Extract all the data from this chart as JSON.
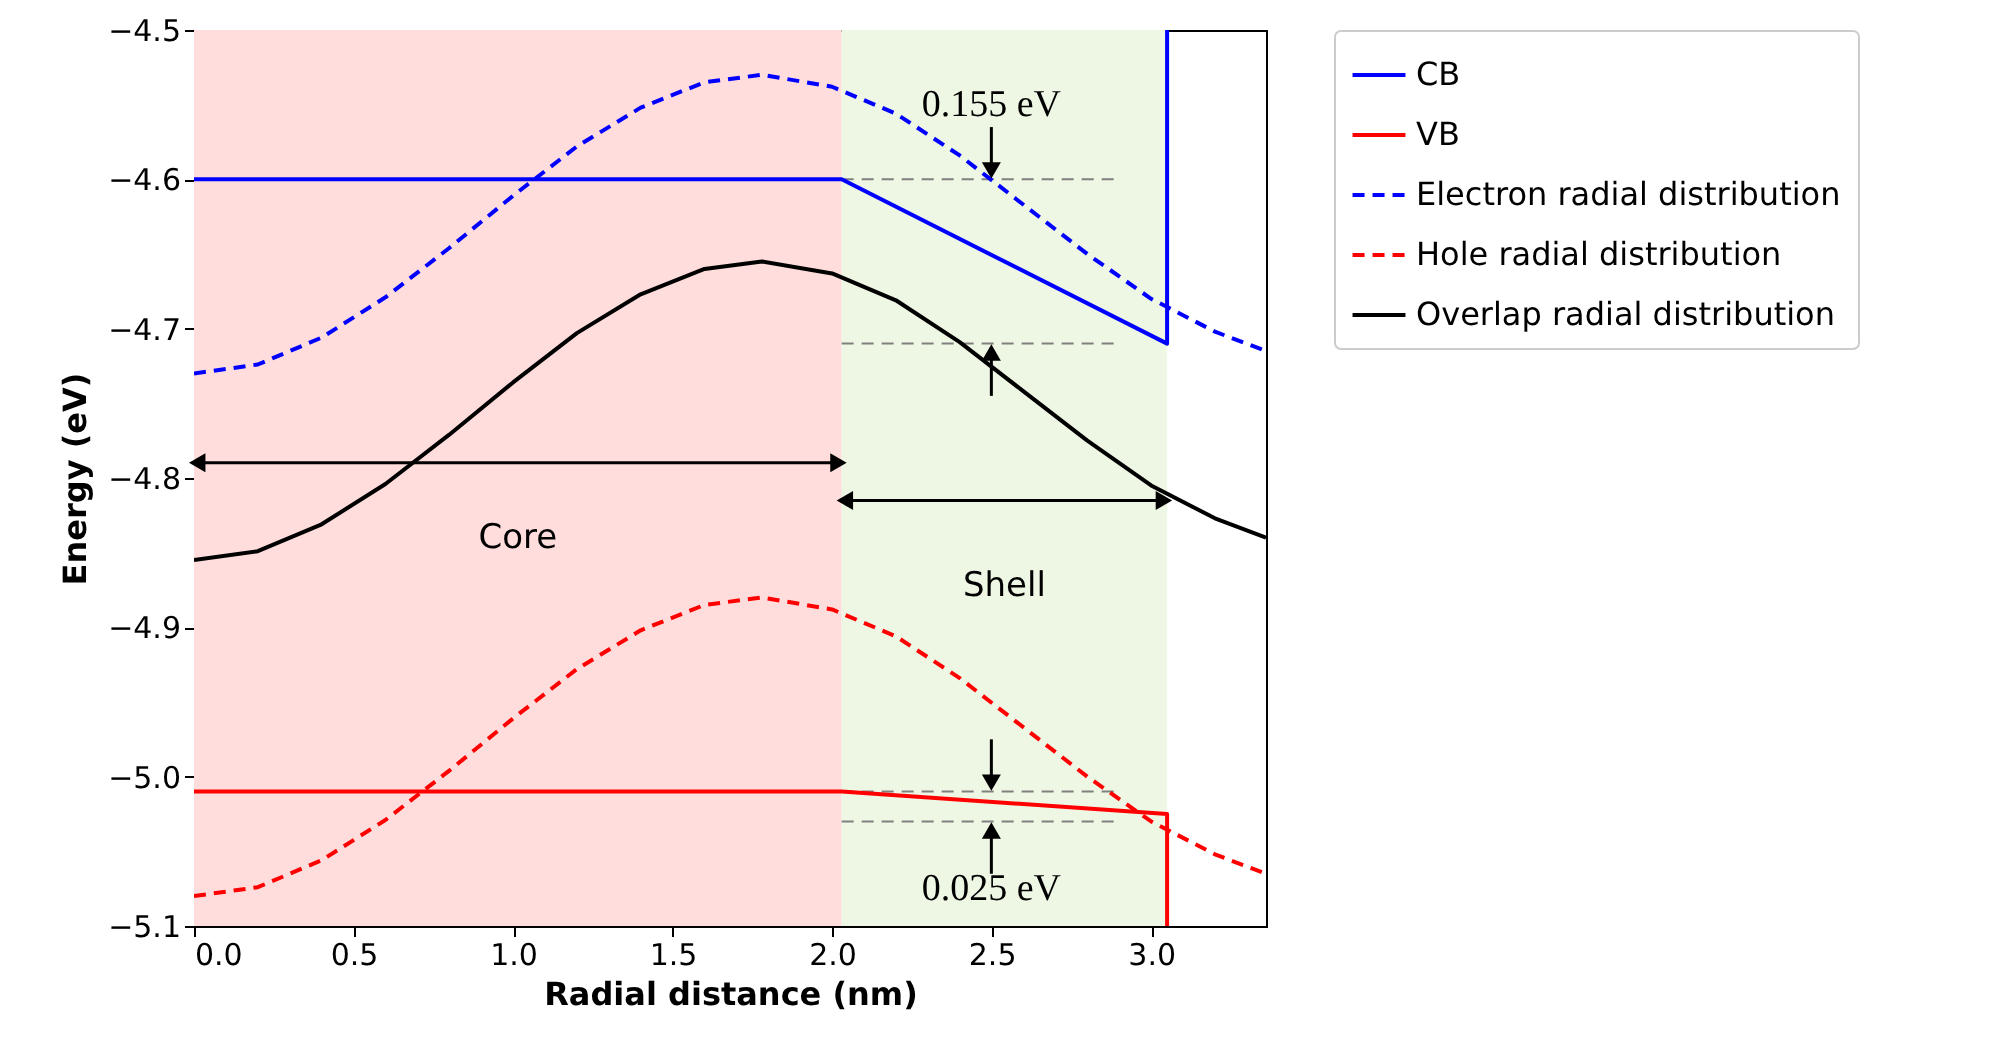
{
  "chart_data": {
    "type": "line",
    "xlabel": "Radial distance (nm)",
    "ylabel": "Energy (eV)",
    "xlim": [
      0,
      3.36
    ],
    "ylim": [
      -5.1,
      -4.5
    ],
    "xticks": [
      {
        "value": 0,
        "label": "0.0"
      },
      {
        "value": 0.5,
        "label": "0.5"
      },
      {
        "value": 1,
        "label": "1.0"
      },
      {
        "value": 1.5,
        "label": "1.5"
      },
      {
        "value": 2,
        "label": "2.0"
      },
      {
        "value": 2.5,
        "label": "2.5"
      },
      {
        "value": 3,
        "label": "3.0"
      }
    ],
    "yticks": [
      {
        "value": -5.1,
        "label": "−5.1"
      },
      {
        "value": -5.0,
        "label": "−5.0"
      },
      {
        "value": -4.9,
        "label": "−4.9"
      },
      {
        "value": -4.8,
        "label": "−4.8"
      },
      {
        "value": -4.7,
        "label": "−4.7"
      },
      {
        "value": -4.6,
        "label": "−4.6"
      },
      {
        "value": -4.5,
        "label": "−4.5"
      }
    ],
    "legend": "right",
    "grid": false,
    "series": [
      {
        "name": "CB",
        "color": "#0000ff",
        "line_style": "solid",
        "x": [
          0,
          2.03,
          3.05,
          3.05
        ],
        "values": [
          -4.6,
          -4.6,
          -4.71,
          -4.5
        ]
      },
      {
        "name": "VB",
        "color": "#ff0000",
        "line_style": "solid",
        "x": [
          0,
          2.03,
          3.05,
          3.05
        ],
        "values": [
          -5.01,
          -5.01,
          -5.025,
          -5.1
        ]
      },
      {
        "name": "Electron radial distribution",
        "color": "#0000ff",
        "line_style": "dashed",
        "x": [
          0,
          0.2,
          0.4,
          0.6,
          0.8,
          1.0,
          1.2,
          1.4,
          1.6,
          1.78,
          2.0,
          2.2,
          2.4,
          2.6,
          2.8,
          3.0,
          3.2,
          3.36
        ],
        "values": [
          -4.73,
          -4.724,
          -4.706,
          -4.679,
          -4.646,
          -4.611,
          -4.578,
          -4.552,
          -4.535,
          -4.53,
          -4.538,
          -4.556,
          -4.584,
          -4.617,
          -4.65,
          -4.68,
          -4.702,
          -4.715
        ]
      },
      {
        "name": "Hole radial distribution",
        "color": "#ff0000",
        "line_style": "dashed",
        "x": [
          0,
          0.2,
          0.4,
          0.6,
          0.8,
          1.0,
          1.2,
          1.4,
          1.6,
          1.78,
          2.0,
          2.2,
          2.4,
          2.6,
          2.8,
          3.0,
          3.2,
          3.36
        ],
        "values": [
          -5.08,
          -5.074,
          -5.056,
          -5.029,
          -4.996,
          -4.961,
          -4.928,
          -4.902,
          -4.885,
          -4.88,
          -4.888,
          -4.906,
          -4.934,
          -4.967,
          -5.0,
          -5.03,
          -5.052,
          -5.065
        ]
      },
      {
        "name": "Overlap radial distribution",
        "color": "#000000",
        "line_style": "solid",
        "x": [
          0,
          0.2,
          0.4,
          0.6,
          0.8,
          1.0,
          1.2,
          1.4,
          1.6,
          1.78,
          2.0,
          2.2,
          2.4,
          2.6,
          2.8,
          3.0,
          3.2,
          3.36
        ],
        "values": [
          -4.855,
          -4.849,
          -4.831,
          -4.804,
          -4.771,
          -4.736,
          -4.703,
          -4.677,
          -4.66,
          -4.655,
          -4.663,
          -4.681,
          -4.709,
          -4.742,
          -4.775,
          -4.805,
          -4.827,
          -4.84
        ]
      }
    ],
    "bands": [
      {
        "axis": "x",
        "from": 0,
        "to": 2.03,
        "color": "#ffdddd"
      },
      {
        "axis": "x",
        "from": 2.03,
        "to": 3.05,
        "color": "#eef6e4"
      }
    ],
    "ref_lines": [
      {
        "axis": "y",
        "value": -4.6,
        "color": "#808080",
        "line_style": "dashed"
      },
      {
        "axis": "y",
        "value": -4.71,
        "color": "#808080",
        "line_style": "dashed"
      },
      {
        "axis": "y",
        "value": -5.01,
        "color": "#808080",
        "line_style": "dashed"
      },
      {
        "axis": "y",
        "value": -5.03,
        "color": "#808080",
        "line_style": "dashed"
      }
    ],
    "annotations": [
      "Core",
      "Shell",
      "0.155 eV",
      "0.025 eV"
    ]
  }
}
